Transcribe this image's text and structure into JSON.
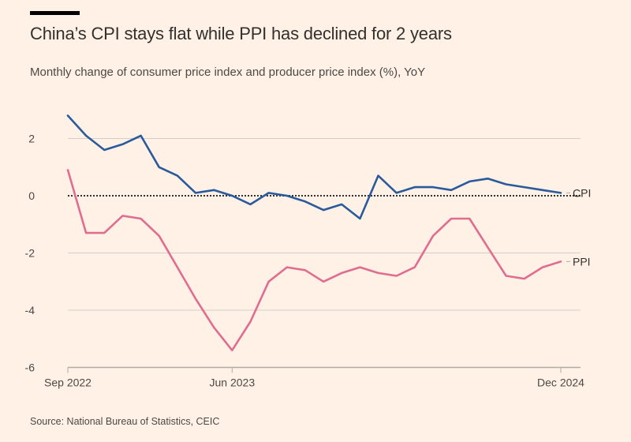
{
  "header": {
    "title": "China’s CPI stays flat while PPI has declined for 2 years",
    "subtitle": "Monthly change of consumer price index and producer price index (%), YoY"
  },
  "footer": {
    "source": "Source: National Bureau of Statistics, CEIC"
  },
  "chart_data": {
    "type": "line",
    "title": "China’s CPI stays flat while PPI has declined for 2 years",
    "subtitle": "Monthly change of consumer price index and producer price index (%), YoY",
    "xlabel": "",
    "ylabel": "",
    "x": [
      "Sep 2022",
      "Oct 2022",
      "Nov 2022",
      "Dec 2022",
      "Jan 2023",
      "Feb 2023",
      "Mar 2023",
      "Apr 2023",
      "May 2023",
      "Jun 2023",
      "Jul 2023",
      "Aug 2023",
      "Sep 2023",
      "Oct 2023",
      "Nov 2023",
      "Dec 2023",
      "Jan 2024",
      "Feb 2024",
      "Mar 2024",
      "Apr 2024",
      "May 2024",
      "Jun 2024",
      "Jul 2024",
      "Aug 2024",
      "Sep 2024",
      "Oct 2024",
      "Nov 2024",
      "Dec 2024"
    ],
    "x_ticks": [
      {
        "label": "Sep 2022",
        "index": 0
      },
      {
        "label": "Jun 2023",
        "index": 9
      },
      {
        "label": "Dec 2024",
        "index": 27
      }
    ],
    "y_ticks": [
      2,
      0,
      -2,
      -4,
      -6
    ],
    "ylim": [
      -6,
      3
    ],
    "grid": true,
    "zero_line": "dotted",
    "legend": "inline-right",
    "series": [
      {
        "name": "CPI",
        "color": "#2a5a9b",
        "values": [
          2.8,
          2.1,
          1.6,
          1.8,
          2.1,
          1.0,
          0.7,
          0.1,
          0.2,
          0.0,
          -0.3,
          0.1,
          0.0,
          -0.2,
          -0.5,
          -0.3,
          -0.8,
          0.7,
          0.1,
          0.3,
          0.3,
          0.2,
          0.5,
          0.6,
          0.4,
          0.3,
          0.2,
          0.1
        ]
      },
      {
        "name": "PPI",
        "color": "#e06d90",
        "values": [
          0.9,
          -1.3,
          -1.3,
          -0.7,
          -0.8,
          -1.4,
          -2.5,
          -3.6,
          -4.6,
          -5.4,
          -4.4,
          -3.0,
          -2.5,
          -2.6,
          -3.0,
          -2.7,
          -2.5,
          -2.7,
          -2.8,
          -2.5,
          -1.4,
          -0.8,
          -0.8,
          -1.8,
          -2.8,
          -2.9,
          -2.5,
          -2.3
        ]
      }
    ]
  }
}
